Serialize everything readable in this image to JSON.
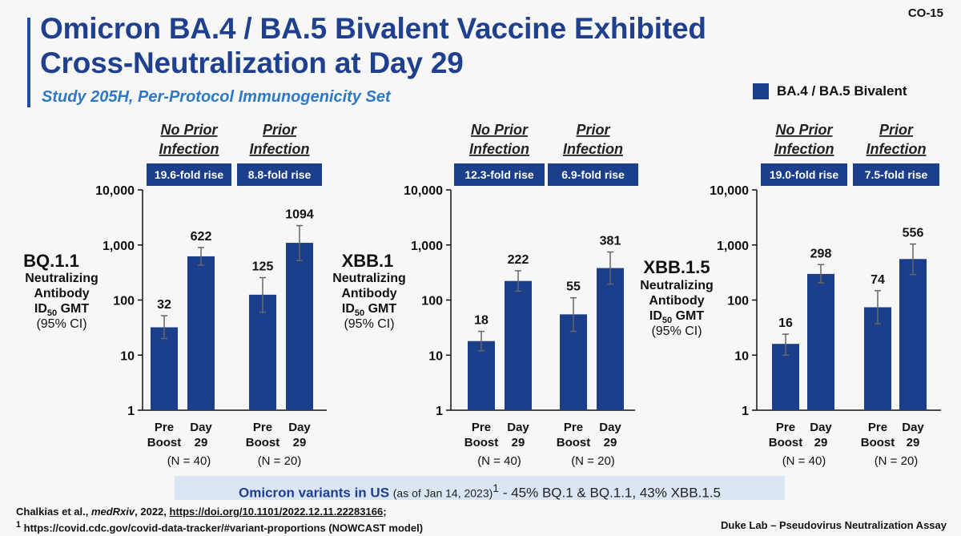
{
  "slide_id": "CO-15",
  "title_line1": "Omicron BA.4 / BA.5 Bivalent Vaccine Exhibited",
  "title_line2": "Cross-Neutralization at Day 29",
  "subtitle": "Study 205H, Per-Protocol Immunogenicity Set",
  "legend": {
    "label": "BA.4 / BA.5 Bivalent",
    "color": "#1b3f8b"
  },
  "colors": {
    "bar": "#1b3f8b",
    "label_box": "#1b3f8b",
    "header_text": "#222222",
    "title": "#1f3f8f"
  },
  "chart_data": [
    {
      "type": "bar",
      "yscale": "log",
      "ylim": [
        1,
        10000
      ],
      "yticks": [
        "1",
        "10",
        "100",
        "1,000",
        "10,000"
      ],
      "ytick_values": [
        1,
        10,
        100,
        1000,
        10000
      ],
      "variant": "BQ.1.1",
      "ylabel_lines": [
        "Neutralizing",
        "Antibody",
        "ID",
        "GMT",
        "(95% CI)"
      ],
      "ylabel_sub": "50",
      "groups": [
        {
          "header": [
            "No Prior",
            "Infection"
          ],
          "fold_rise": "19.6-fold rise",
          "n": "(N = 40)",
          "bars": [
            {
              "label": [
                "Pre",
                "Boost"
              ],
              "value": 32,
              "display": "32",
              "ci": [
                20,
                52
              ]
            },
            {
              "label": [
                "Day",
                "29"
              ],
              "value": 622,
              "display": "622",
              "ci": [
                430,
                900
              ]
            }
          ]
        },
        {
          "header": [
            "Prior",
            "Infection"
          ],
          "fold_rise": "8.8-fold rise",
          "n": "(N = 20)",
          "bars": [
            {
              "label": [
                "Pre",
                "Boost"
              ],
              "value": 125,
              "display": "125",
              "ci": [
                60,
                255
              ]
            },
            {
              "label": [
                "Day",
                "29"
              ],
              "value": 1094,
              "display": "1094",
              "ci": [
                520,
                2250
              ]
            }
          ]
        }
      ]
    },
    {
      "type": "bar",
      "yscale": "log",
      "ylim": [
        1,
        10000
      ],
      "yticks": [
        "1",
        "10",
        "100",
        "1,000",
        "10,000"
      ],
      "ytick_values": [
        1,
        10,
        100,
        1000,
        10000
      ],
      "variant": "XBB.1",
      "ylabel_lines": [
        "Neutralizing",
        "Antibody",
        "ID",
        "GMT",
        "(95% CI)"
      ],
      "ylabel_sub": "50",
      "groups": [
        {
          "header": [
            "No Prior",
            "Infection"
          ],
          "fold_rise": "12.3-fold rise",
          "n": "(N = 40)",
          "bars": [
            {
              "label": [
                "Pre",
                "Boost"
              ],
              "value": 18,
              "display": "18",
              "ci": [
                12,
                27
              ]
            },
            {
              "label": [
                "Day",
                "29"
              ],
              "value": 222,
              "display": "222",
              "ci": [
                145,
                340
              ]
            }
          ]
        },
        {
          "header": [
            "Prior",
            "Infection"
          ],
          "fold_rise": "6.9-fold rise",
          "n": "(N = 20)",
          "bars": [
            {
              "label": [
                "Pre",
                "Boost"
              ],
              "value": 55,
              "display": "55",
              "ci": [
                27,
                110
              ]
            },
            {
              "label": [
                "Day",
                "29"
              ],
              "value": 381,
              "display": "381",
              "ci": [
                195,
                745
              ]
            }
          ]
        }
      ]
    },
    {
      "type": "bar",
      "yscale": "log",
      "ylim": [
        1,
        10000
      ],
      "yticks": [
        "1",
        "10",
        "100",
        "1,000",
        "10,000"
      ],
      "ytick_values": [
        1,
        10,
        100,
        1000,
        10000
      ],
      "variant": "XBB.1.5",
      "ylabel_lines": [
        "Neutralizing",
        "Antibody",
        "ID",
        "GMT",
        "(95% CI)"
      ],
      "ylabel_sub": "50",
      "groups": [
        {
          "header": [
            "No Prior",
            "Infection"
          ],
          "fold_rise": "19.0-fold rise",
          "n": "(N = 40)",
          "bars": [
            {
              "label": [
                "Pre",
                "Boost"
              ],
              "value": 16,
              "display": "16",
              "ci": [
                10,
                24
              ]
            },
            {
              "label": [
                "Day",
                "29"
              ],
              "value": 298,
              "display": "298",
              "ci": [
                205,
                440
              ]
            }
          ]
        },
        {
          "header": [
            "Prior",
            "Infection"
          ],
          "fold_rise": "7.5-fold rise",
          "n": "(N = 20)",
          "bars": [
            {
              "label": [
                "Pre",
                "Boost"
              ],
              "value": 74,
              "display": "74",
              "ci": [
                37,
                148
              ]
            },
            {
              "label": [
                "Day",
                "29"
              ],
              "value": 556,
              "display": "556",
              "ci": [
                290,
                1040
              ]
            }
          ]
        }
      ]
    }
  ],
  "banner": {
    "bold_text": "Omicron variants in US",
    "small_text": "(as of Jan 14, 2023)",
    "sup": "1",
    "rest": " -  45% BQ.1 & BQ.1.1, 43% XBB.1.5"
  },
  "references": {
    "line1_authors": "Chalkias et al., ",
    "line1_journal": "medRxiv",
    "line1_year": ", 2022, ",
    "line1_link": "https://doi.org/10.1101/2022.12.11.22283166",
    "line1_end": ";",
    "line2_sup": "1",
    "line2_text": " https://covid.cdc.gov/covid-data-tracker/#variant-proportions (NOWCAST model)"
  },
  "source_note": "Duke Lab – Pseudovirus Neutralization Assay"
}
